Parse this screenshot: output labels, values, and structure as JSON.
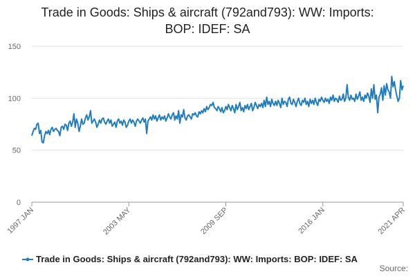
{
  "chart_data": {
    "type": "line",
    "title": "Trade in Goods: Ships & aircraft (792and793): WW: Imports: BOP: IDEF: SA",
    "source": "Source:",
    "categories": [
      "1997 JAN",
      null,
      null,
      null,
      null,
      null,
      null,
      null,
      null,
      null,
      null,
      null,
      null,
      null,
      null,
      null,
      null,
      null,
      null,
      null,
      null,
      null,
      null,
      null,
      null,
      null,
      null,
      null,
      null,
      null,
      null,
      null,
      null,
      null,
      null,
      null,
      null,
      null,
      null,
      null,
      null,
      null,
      null,
      null,
      null,
      null,
      null,
      null,
      null,
      null,
      null,
      null,
      null,
      null,
      null,
      null,
      null,
      null,
      null,
      null,
      null,
      null,
      null,
      null,
      null,
      null,
      null,
      null,
      null,
      null,
      null,
      null,
      null,
      null,
      null,
      null,
      "2003 MAY",
      null,
      null,
      null,
      null,
      null,
      null,
      null,
      null,
      null,
      null,
      null,
      null,
      null,
      null,
      null,
      null,
      null,
      null,
      null,
      null,
      null,
      null,
      null,
      null,
      null,
      null,
      null,
      null,
      null,
      null,
      null,
      null,
      null,
      null,
      null,
      null,
      null,
      null,
      null,
      null,
      null,
      null,
      null,
      null,
      null,
      null,
      null,
      null,
      null,
      null,
      null,
      null,
      null,
      null,
      null,
      null,
      null,
      null,
      null,
      null,
      null,
      null,
      null,
      null,
      null,
      null,
      null,
      null,
      null,
      null,
      null,
      null,
      null,
      null,
      null,
      "2009 SEP",
      null,
      null,
      null,
      null,
      null,
      null,
      null,
      null,
      null,
      null,
      null,
      null,
      null,
      null,
      null,
      null,
      null,
      null,
      null,
      null,
      null,
      null,
      null,
      null,
      null,
      null,
      null,
      null,
      null,
      null,
      null,
      null,
      null,
      null,
      null,
      null,
      null,
      null,
      null,
      null,
      null,
      null,
      null,
      null,
      null,
      null,
      null,
      null,
      null,
      null,
      null,
      null,
      null,
      null,
      null,
      null,
      null,
      null,
      null,
      null,
      null,
      null,
      null,
      null,
      null,
      null,
      null,
      null,
      null,
      null,
      null,
      null,
      null,
      null,
      null,
      "2016 JAN",
      null,
      null,
      null,
      null,
      null,
      null,
      null,
      null,
      null,
      null,
      null,
      null,
      null,
      null,
      null,
      null,
      null,
      null,
      null,
      null,
      null,
      null,
      null,
      null,
      null,
      null,
      null,
      null,
      null,
      null,
      null,
      null,
      null,
      null,
      null,
      null,
      null,
      null,
      null,
      null,
      null,
      null,
      null,
      null,
      null,
      null,
      null,
      null,
      null,
      null,
      null,
      null,
      null,
      null,
      null,
      null,
      null,
      null,
      null,
      null,
      null,
      null,
      "2021 APR"
    ],
    "series": [
      {
        "name": "Trade in Goods: Ships & aircraft (792and793): WW: Imports: BOP: IDEF: SA",
        "color": "#1f7cc1",
        "values": [
          64,
          68,
          71,
          70,
          75,
          76,
          66,
          69,
          58,
          57,
          64,
          68,
          66,
          69,
          65,
          70,
          72,
          68,
          70,
          71,
          69,
          68,
          64,
          72,
          73,
          70,
          75,
          74,
          69,
          76,
          78,
          73,
          77,
          85,
          72,
          80,
          76,
          68,
          73,
          80,
          75,
          76,
          81,
          84,
          79,
          82,
          88,
          76,
          78,
          80,
          77,
          72,
          75,
          79,
          76,
          80,
          81,
          77,
          75,
          78,
          80,
          76,
          79,
          73,
          75,
          77,
          72,
          78,
          80,
          76,
          78,
          74,
          79,
          77,
          72,
          74,
          78,
          80,
          76,
          79,
          77,
          73,
          78,
          80,
          78,
          76,
          79,
          81,
          77,
          80,
          66,
          78,
          80,
          82,
          79,
          84,
          80,
          83,
          78,
          81,
          84,
          79,
          82,
          80,
          83,
          78,
          81,
          85,
          82,
          80,
          84,
          86,
          79,
          83,
          80,
          88,
          76,
          84,
          82,
          89,
          81,
          79,
          83,
          84,
          82,
          80,
          85,
          84,
          86,
          83,
          82,
          87,
          85,
          88,
          86,
          90,
          87,
          92,
          89,
          91,
          94,
          93,
          96,
          91,
          90,
          88,
          92,
          90,
          87,
          91,
          86,
          88,
          92,
          89,
          94,
          91,
          88,
          93,
          90,
          86,
          94,
          89,
          92,
          96,
          88,
          91,
          87,
          93,
          90,
          94,
          89,
          92,
          95,
          88,
          91,
          96,
          93,
          90,
          94,
          92,
          95,
          91,
          98,
          92,
          101,
          94,
          97,
          92,
          99,
          95,
          93,
          97,
          93,
          98,
          95,
          91,
          100,
          94,
          97,
          96,
          92,
          99,
          101,
          95,
          94,
          99,
          96,
          92,
          97,
          100,
          95,
          93,
          98,
          96,
          100,
          94,
          97,
          92,
          99,
          95,
          98,
          94,
          100,
          96,
          93,
          99,
          97,
          101,
          98,
          96,
          100,
          97,
          99,
          95,
          101,
          98,
          103,
          97,
          100,
          99,
          96,
          102,
          98,
          99,
          104,
          97,
          100,
          113,
          101,
          98,
          103,
          99,
          100,
          97,
          104,
          99,
          102,
          106,
          98,
          101,
          97,
          103,
          100,
          105,
          102,
          96,
          109,
          100,
          113,
          99,
          103,
          86,
          101,
          104,
          110,
          98,
          112,
          103,
          114,
          108,
          106,
          100,
          121,
          111,
          116,
          108,
          102,
          97,
          100,
          117,
          108,
          112
        ]
      }
    ],
    "ylim": [
      0,
      150
    ],
    "yticks": [
      0,
      50,
      100,
      150
    ],
    "grid": true,
    "legend": "bottom"
  }
}
